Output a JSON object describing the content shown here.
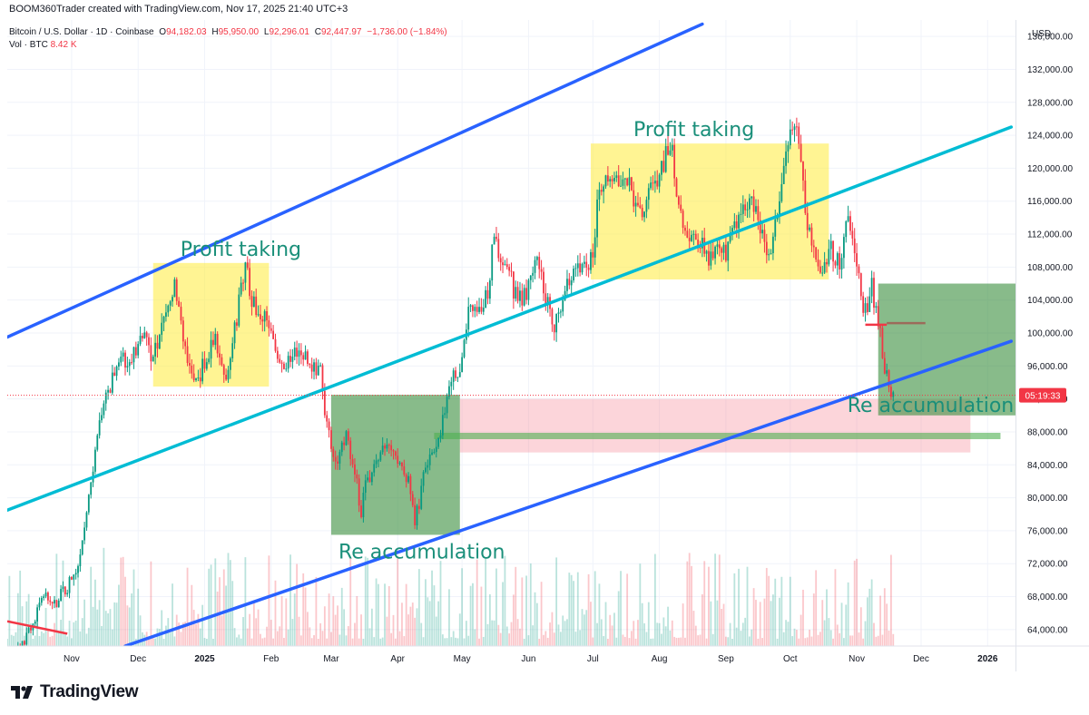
{
  "header": {
    "author_line": "BOOM360Trader created with TradingView.com, Nov 17, 2025 21:40 UTC+3"
  },
  "legend": {
    "symbol": "Bitcoin / U.S. Dollar · 1D · Coinbase",
    "open_label": "O",
    "open_value": "94,182.03",
    "high_label": "H",
    "high_value": "95,950.00",
    "low_label": "L",
    "low_value": "92,296.01",
    "close_label": "C",
    "close_value": "92,447.97",
    "change": "−1,736.00 (−1.84%)",
    "volume_label": "Vol · BTC",
    "volume_value": "8.42 K"
  },
  "axis": {
    "currency": "USD",
    "price_ticks": [
      "64,000.00",
      "68,000.00",
      "72,000.00",
      "76,000.00",
      "80,000.00",
      "84,000.00",
      "88,000.00",
      "92,000.00",
      "96,000.00",
      "100,000.00",
      "104,000.00",
      "108,000.00",
      "112,000.00",
      "116,000.00",
      "120,000.00",
      "124,000.00",
      "128,000.00",
      "132,000.00",
      "136,000.00"
    ],
    "price_tick_values": [
      64000,
      68000,
      72000,
      76000,
      80000,
      84000,
      88000,
      92000,
      96000,
      100000,
      104000,
      108000,
      112000,
      116000,
      120000,
      124000,
      128000,
      132000,
      136000
    ],
    "countdown": "05:19:33",
    "time_labels": [
      "Nov",
      "Dec",
      "2025",
      "Feb",
      "Mar",
      "Apr",
      "May",
      "Jun",
      "Jul",
      "Aug",
      "Sep",
      "Oct",
      "Nov",
      "Dec",
      "2026"
    ],
    "time_label_days": [
      30,
      61,
      92,
      123,
      151,
      182,
      212,
      243,
      273,
      304,
      335,
      365,
      396,
      426,
      457
    ],
    "time_label_bold": [
      false,
      false,
      true,
      false,
      false,
      false,
      false,
      false,
      false,
      false,
      false,
      false,
      false,
      false,
      true
    ]
  },
  "chart_data": {
    "type": "candlestick",
    "symbol": "BTCUSD",
    "timeframe": "1D",
    "exchange": "Coinbase",
    "ylim": [
      62000,
      138000
    ],
    "xlim_days": [
      0,
      470
    ],
    "day0": "2024-10-02",
    "current_price": 92447.97,
    "close_path": [
      {
        "day": 0,
        "price": 60500
      },
      {
        "day": 5,
        "price": 62000
      },
      {
        "day": 10,
        "price": 63500
      },
      {
        "day": 14,
        "price": 66500
      },
      {
        "day": 18,
        "price": 68000
      },
      {
        "day": 22,
        "price": 67000
      },
      {
        "day": 26,
        "price": 68500
      },
      {
        "day": 30,
        "price": 70000
      },
      {
        "day": 33,
        "price": 72500
      },
      {
        "day": 36,
        "price": 76000
      },
      {
        "day": 39,
        "price": 82000
      },
      {
        "day": 42,
        "price": 88000
      },
      {
        "day": 45,
        "price": 91000
      },
      {
        "day": 48,
        "price": 93500
      },
      {
        "day": 52,
        "price": 97000
      },
      {
        "day": 56,
        "price": 96000
      },
      {
        "day": 60,
        "price": 97500
      },
      {
        "day": 64,
        "price": 99500
      },
      {
        "day": 68,
        "price": 97000
      },
      {
        "day": 72,
        "price": 101000
      },
      {
        "day": 76,
        "price": 103500
      },
      {
        "day": 78,
        "price": 106000
      },
      {
        "day": 81,
        "price": 101500
      },
      {
        "day": 85,
        "price": 96000
      },
      {
        "day": 89,
        "price": 94500
      },
      {
        "day": 93,
        "price": 97500
      },
      {
        "day": 97,
        "price": 99000
      },
      {
        "day": 101,
        "price": 94000
      },
      {
        "day": 105,
        "price": 99000
      },
      {
        "day": 109,
        "price": 105000
      },
      {
        "day": 111,
        "price": 108000
      },
      {
        "day": 114,
        "price": 104000
      },
      {
        "day": 118,
        "price": 102000
      },
      {
        "day": 122,
        "price": 101000
      },
      {
        "day": 126,
        "price": 97000
      },
      {
        "day": 130,
        "price": 96500
      },
      {
        "day": 134,
        "price": 98000
      },
      {
        "day": 138,
        "price": 97000
      },
      {
        "day": 142,
        "price": 96000
      },
      {
        "day": 146,
        "price": 95500
      },
      {
        "day": 148,
        "price": 91000
      },
      {
        "day": 151,
        "price": 86000
      },
      {
        "day": 154,
        "price": 84500
      },
      {
        "day": 158,
        "price": 88000
      },
      {
        "day": 162,
        "price": 83000
      },
      {
        "day": 165,
        "price": 78500
      },
      {
        "day": 168,
        "price": 82500
      },
      {
        "day": 172,
        "price": 84000
      },
      {
        "day": 176,
        "price": 87000
      },
      {
        "day": 180,
        "price": 86000
      },
      {
        "day": 184,
        "price": 83000
      },
      {
        "day": 187,
        "price": 82000
      },
      {
        "day": 190,
        "price": 77000
      },
      {
        "day": 192,
        "price": 79500
      },
      {
        "day": 195,
        "price": 84000
      },
      {
        "day": 199,
        "price": 85000
      },
      {
        "day": 202,
        "price": 88000
      },
      {
        "day": 205,
        "price": 93000
      },
      {
        "day": 208,
        "price": 94500
      },
      {
        "day": 212,
        "price": 96500
      },
      {
        "day": 215,
        "price": 103000
      },
      {
        "day": 218,
        "price": 104000
      },
      {
        "day": 221,
        "price": 103000
      },
      {
        "day": 224,
        "price": 104500
      },
      {
        "day": 226,
        "price": 110000
      },
      {
        "day": 228,
        "price": 111000
      },
      {
        "day": 230,
        "price": 107500
      },
      {
        "day": 233,
        "price": 109000
      },
      {
        "day": 236,
        "price": 105000
      },
      {
        "day": 240,
        "price": 104500
      },
      {
        "day": 243,
        "price": 105500
      },
      {
        "day": 247,
        "price": 110000
      },
      {
        "day": 251,
        "price": 104500
      },
      {
        "day": 255,
        "price": 101000
      },
      {
        "day": 258,
        "price": 103000
      },
      {
        "day": 262,
        "price": 107000
      },
      {
        "day": 266,
        "price": 108000
      },
      {
        "day": 270,
        "price": 109000
      },
      {
        "day": 273,
        "price": 108500
      },
      {
        "day": 276,
        "price": 118000
      },
      {
        "day": 279,
        "price": 119500
      },
      {
        "day": 282,
        "price": 118000
      },
      {
        "day": 286,
        "price": 119000
      },
      {
        "day": 290,
        "price": 117500
      },
      {
        "day": 294,
        "price": 115000
      },
      {
        "day": 298,
        "price": 115500
      },
      {
        "day": 302,
        "price": 118500
      },
      {
        "day": 306,
        "price": 121000
      },
      {
        "day": 309,
        "price": 123500
      },
      {
        "day": 312,
        "price": 117500
      },
      {
        "day": 315,
        "price": 113000
      },
      {
        "day": 319,
        "price": 112000
      },
      {
        "day": 323,
        "price": 111500
      },
      {
        "day": 327,
        "price": 109000
      },
      {
        "day": 331,
        "price": 110000
      },
      {
        "day": 335,
        "price": 109500
      },
      {
        "day": 339,
        "price": 112500
      },
      {
        "day": 343,
        "price": 115500
      },
      {
        "day": 347,
        "price": 116000
      },
      {
        "day": 351,
        "price": 113000
      },
      {
        "day": 355,
        "price": 109000
      },
      {
        "day": 359,
        "price": 114000
      },
      {
        "day": 362,
        "price": 120000
      },
      {
        "day": 365,
        "price": 123500
      },
      {
        "day": 367,
        "price": 125000
      },
      {
        "day": 370,
        "price": 121000
      },
      {
        "day": 373,
        "price": 113000
      },
      {
        "day": 376,
        "price": 111000
      },
      {
        "day": 380,
        "price": 107000
      },
      {
        "day": 384,
        "price": 110000
      },
      {
        "day": 388,
        "price": 108500
      },
      {
        "day": 392,
        "price": 114500
      },
      {
        "day": 395,
        "price": 110000
      },
      {
        "day": 397,
        "price": 106000
      },
      {
        "day": 399,
        "price": 101500
      },
      {
        "day": 401,
        "price": 103500
      },
      {
        "day": 403,
        "price": 105500
      },
      {
        "day": 406,
        "price": 101500
      },
      {
        "day": 409,
        "price": 96000
      },
      {
        "day": 412,
        "price": 93000
      },
      {
        "day": 413,
        "price": 92448
      }
    ],
    "annotations": [
      {
        "label": "Profit taking",
        "kind": "yellow-box",
        "day_start": 68,
        "day_end": 122,
        "price_low": 93500,
        "price_high": 108500
      },
      {
        "label": "Profit taking",
        "kind": "yellow-box",
        "day_start": 272,
        "day_end": 383,
        "price_low": 106500,
        "price_high": 123000
      },
      {
        "label": "Re accumulation",
        "kind": "green-box",
        "day_start": 151,
        "day_end": 211,
        "price_low": 75500,
        "price_high": 92500
      },
      {
        "label": "Re accumulation",
        "kind": "green-box",
        "day_start": 406,
        "day_end": 473,
        "price_low": 90000,
        "price_high": 106000
      },
      {
        "label": "",
        "kind": "pink-zone",
        "day_start": 211,
        "day_end": 449,
        "price_low": 85500,
        "price_high": 92000
      },
      {
        "label": "",
        "kind": "green-line",
        "day_start": 199,
        "day_end": 463,
        "price": 87500
      }
    ],
    "trendlines": [
      {
        "color": "#2962ff",
        "from": {
          "day": 0,
          "price": 99500
        },
        "to": {
          "day": 324,
          "price": 137500
        }
      },
      {
        "color": "#00bcd4",
        "from": {
          "day": 0,
          "price": 78500
        },
        "to": {
          "day": 468,
          "price": 125000
        }
      },
      {
        "color": "#2962ff",
        "from": {
          "day": 55,
          "price": 62000
        },
        "to": {
          "day": 468,
          "price": 99000
        }
      }
    ],
    "level_markers": [
      {
        "color": "#f23645",
        "from": {
          "day": 400,
          "price": 101000
        },
        "to": {
          "day": 410,
          "price": 101000
        }
      },
      {
        "color": "#9c6b5a",
        "from": {
          "day": 410,
          "price": 101200
        },
        "to": {
          "day": 428,
          "price": 101200
        }
      },
      {
        "color": "#f23645",
        "from": {
          "day": 0,
          "price": 65000
        },
        "to": {
          "day": 28,
          "price": 63500
        }
      }
    ]
  },
  "footer": {
    "brand": "TradingView"
  }
}
